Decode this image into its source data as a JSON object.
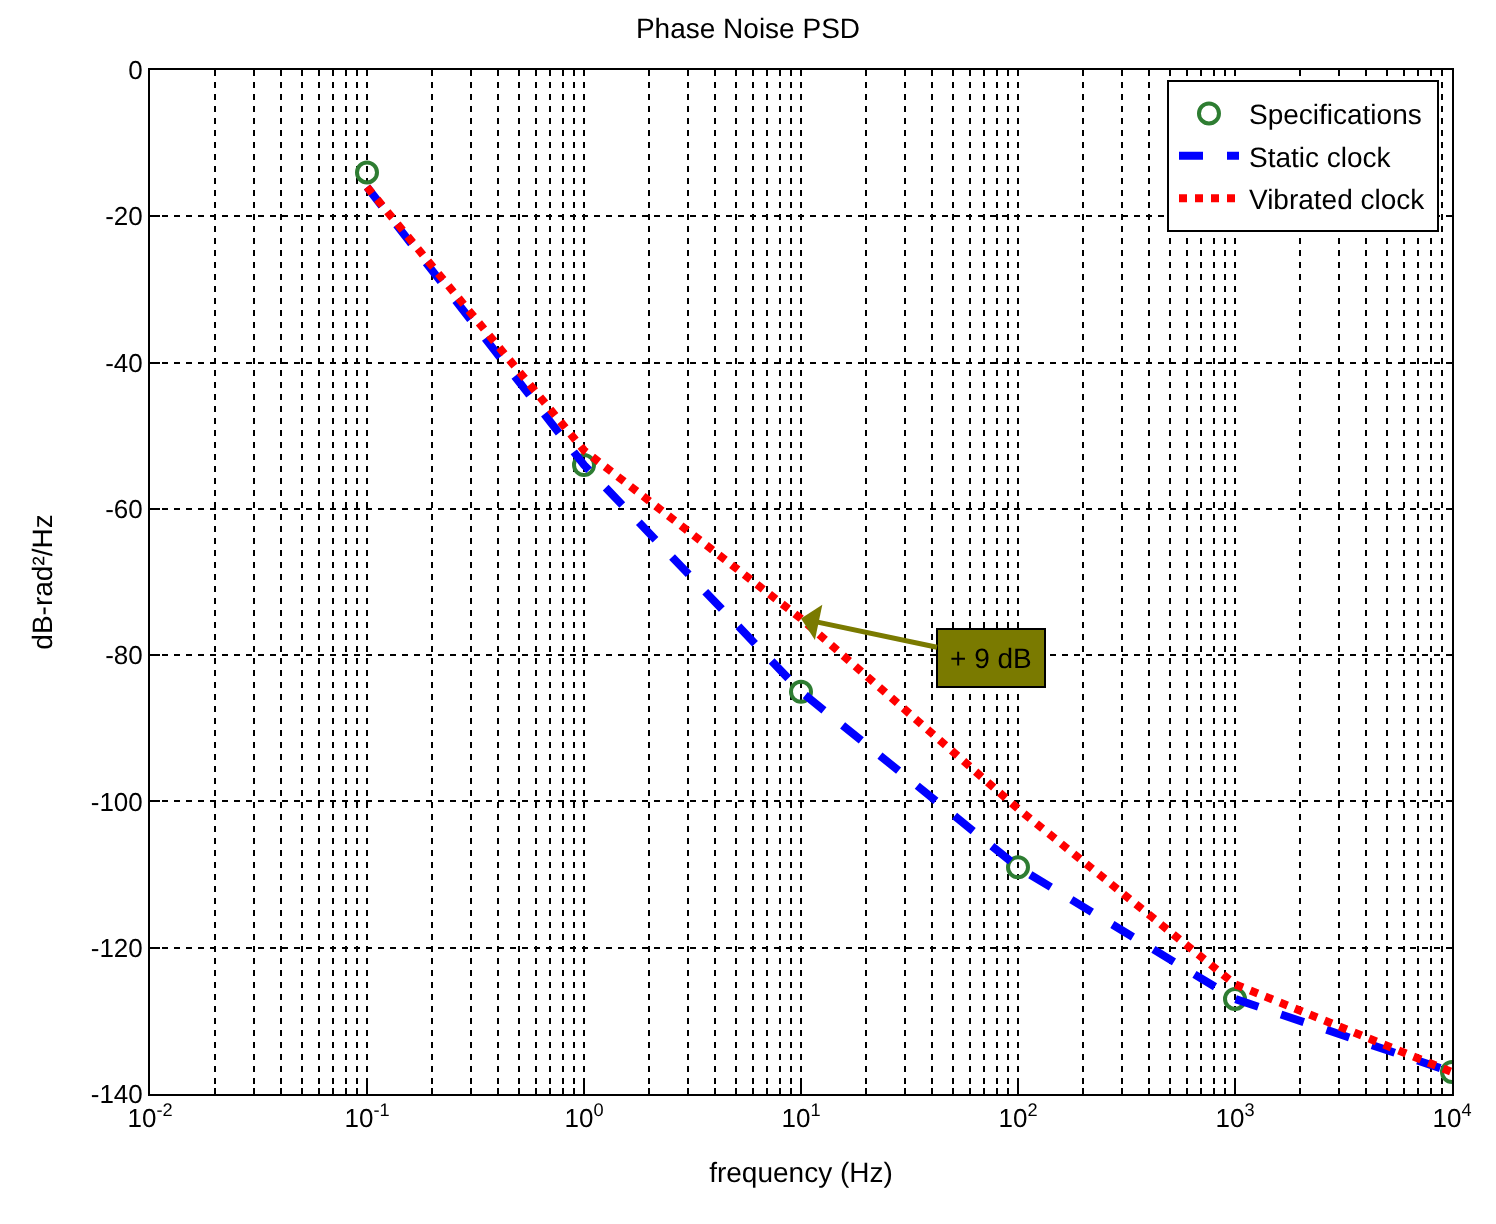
{
  "chart_data": {
    "type": "line",
    "title": "Phase Noise PSD",
    "xlabel": "frequency (Hz)",
    "ylabel": "dB-rad²/Hz",
    "log": "x",
    "grid": true,
    "legend": "top right",
    "xlim": [
      0.01,
      10000
    ],
    "xticks": [
      {
        "value": 0.01,
        "label": "10$^{-2}$"
      },
      {
        "value": 0.1,
        "label": "10$^{-1}$"
      },
      {
        "value": 1,
        "label": "10$^{0}$"
      },
      {
        "value": 10,
        "label": "10$^{1}$"
      },
      {
        "value": 100,
        "label": "10$^{2}$"
      },
      {
        "value": 1000,
        "label": "10$^{3}$"
      },
      {
        "value": 10000,
        "label": "10$^{4}$"
      }
    ],
    "ylim": [
      -140,
      0
    ],
    "yticks": [
      -140,
      -120,
      -100,
      -80,
      -60,
      -40,
      -20,
      0
    ],
    "series": [
      {
        "name": "Specifications",
        "type": "scatter",
        "marker": "circle",
        "color": "#2e7d32",
        "x": [
          0.1,
          1,
          10,
          100,
          1000,
          10000
        ],
        "values": [
          -14,
          -54,
          -85,
          -109,
          -127,
          -137
        ]
      },
      {
        "name": "Static clock",
        "line_style": "dashed",
        "color": "#0000ff",
        "x": [
          0.1,
          1,
          10,
          100,
          1000,
          10000
        ],
        "values": [
          -16,
          -54,
          -85,
          -109,
          -127,
          -137
        ]
      },
      {
        "name": "Vibrated clock",
        "line_style": "dotted",
        "color": "#ff0000",
        "x": [
          0.1,
          1,
          10,
          100,
          1000,
          10000
        ],
        "values": [
          -16,
          -52,
          -75,
          -101,
          -125,
          -137
        ]
      }
    ],
    "annotations": [
      {
        "text": "+ 9 dB",
        "x": 10,
        "y": -75
      }
    ]
  }
}
